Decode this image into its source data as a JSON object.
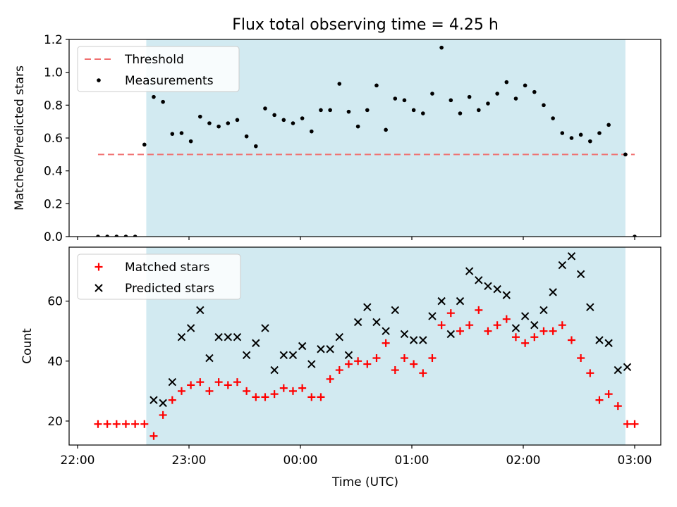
{
  "chart_data": [
    {
      "type": "scatter",
      "title": "Flux total observing time = 4.25 h",
      "xlabel": "",
      "ylabel": "Matched/Predicted stars",
      "xlim": [
        "21:55",
        "03:15"
      ],
      "ylim": [
        0,
        1.2
      ],
      "yticks": [
        "0.0",
        "0.2",
        "0.4",
        "0.6",
        "0.8",
        "1.0",
        "1.2"
      ],
      "shaded_span": [
        "22:37",
        "02:55"
      ],
      "shade_color": "#add8e6",
      "legend": {
        "position": "top-left",
        "entries": [
          "Threshold",
          "Measurements"
        ]
      },
      "threshold": {
        "name": "Threshold",
        "value": 0.5,
        "x_range": [
          "22:11",
          "03:00"
        ],
        "color": "#f07070",
        "style": "dashed"
      },
      "series": [
        {
          "name": "Measurements",
          "color": "#000000",
          "marker": "dot",
          "points": [
            [
              "22:11",
              0.0
            ],
            [
              "22:16",
              0.0
            ],
            [
              "22:21",
              0.0
            ],
            [
              "22:26",
              0.0
            ],
            [
              "22:31",
              0.0
            ],
            [
              "22:36",
              0.56
            ],
            [
              "22:41",
              0.85
            ],
            [
              "22:46",
              0.82
            ],
            [
              "22:51",
              0.625
            ],
            [
              "22:56",
              0.63
            ],
            [
              "23:01",
              0.58
            ],
            [
              "23:06",
              0.73
            ],
            [
              "23:11",
              0.69
            ],
            [
              "23:16",
              0.67
            ],
            [
              "23:21",
              0.69
            ],
            [
              "23:26",
              0.71
            ],
            [
              "23:31",
              0.61
            ],
            [
              "23:36",
              0.55
            ],
            [
              "23:41",
              0.78
            ],
            [
              "23:46",
              0.74
            ],
            [
              "23:51",
              0.71
            ],
            [
              "23:56",
              0.69
            ],
            [
              "00:01",
              0.72
            ],
            [
              "00:06",
              0.64
            ],
            [
              "00:11",
              0.77
            ],
            [
              "00:16",
              0.77
            ],
            [
              "00:21",
              0.93
            ],
            [
              "00:26",
              0.76
            ],
            [
              "00:31",
              0.67
            ],
            [
              "00:36",
              0.77
            ],
            [
              "00:41",
              0.92
            ],
            [
              "00:46",
              0.65
            ],
            [
              "00:51",
              0.84
            ],
            [
              "00:56",
              0.83
            ],
            [
              "01:01",
              0.77
            ],
            [
              "01:06",
              0.75
            ],
            [
              "01:11",
              0.87
            ],
            [
              "01:16",
              1.15
            ],
            [
              "01:21",
              0.83
            ],
            [
              "01:26",
              0.75
            ],
            [
              "01:31",
              0.85
            ],
            [
              "01:36",
              0.77
            ],
            [
              "01:41",
              0.81
            ],
            [
              "01:46",
              0.87
            ],
            [
              "01:51",
              0.94
            ],
            [
              "01:56",
              0.84
            ],
            [
              "02:01",
              0.92
            ],
            [
              "02:06",
              0.88
            ],
            [
              "02:11",
              0.8
            ],
            [
              "02:16",
              0.72
            ],
            [
              "02:21",
              0.63
            ],
            [
              "02:26",
              0.6
            ],
            [
              "02:31",
              0.62
            ],
            [
              "02:36",
              0.58
            ],
            [
              "02:41",
              0.63
            ],
            [
              "02:46",
              0.68
            ],
            [
              "02:55",
              0.5
            ],
            [
              "03:00",
              0.0
            ]
          ]
        }
      ]
    },
    {
      "type": "scatter",
      "title": "",
      "xlabel": "Time (UTC)",
      "ylabel": "Count",
      "xlim": [
        "21:55",
        "03:15"
      ],
      "ylim": [
        12,
        78
      ],
      "yticks": [
        "20",
        "40",
        "60"
      ],
      "xticks": [
        "22:00",
        "23:00",
        "00:00",
        "01:00",
        "02:00",
        "03:00"
      ],
      "shaded_span": [
        "22:37",
        "02:55"
      ],
      "shade_color": "#add8e6",
      "legend": {
        "position": "top-left",
        "entries": [
          "Matched stars",
          "Predicted stars"
        ]
      },
      "series": [
        {
          "name": "Matched stars",
          "color": "#ff0000",
          "marker": "plus",
          "points": [
            [
              "22:11",
              19
            ],
            [
              "22:16",
              19
            ],
            [
              "22:21",
              19
            ],
            [
              "22:26",
              19
            ],
            [
              "22:31",
              19
            ],
            [
              "22:36",
              19
            ],
            [
              "22:41",
              15
            ],
            [
              "22:46",
              22
            ],
            [
              "22:51",
              27
            ],
            [
              "22:56",
              30
            ],
            [
              "23:01",
              32
            ],
            [
              "23:06",
              33
            ],
            [
              "23:11",
              30
            ],
            [
              "23:16",
              33
            ],
            [
              "23:21",
              32
            ],
            [
              "23:26",
              33
            ],
            [
              "23:31",
              30
            ],
            [
              "23:36",
              28
            ],
            [
              "23:41",
              28
            ],
            [
              "23:46",
              29
            ],
            [
              "23:51",
              31
            ],
            [
              "23:56",
              30
            ],
            [
              "00:01",
              31
            ],
            [
              "00:06",
              28
            ],
            [
              "00:11",
              28
            ],
            [
              "00:16",
              34
            ],
            [
              "00:21",
              37
            ],
            [
              "00:26",
              39
            ],
            [
              "00:31",
              40
            ],
            [
              "00:36",
              39
            ],
            [
              "00:41",
              41
            ],
            [
              "00:46",
              46
            ],
            [
              "00:51",
              37
            ],
            [
              "00:56",
              41
            ],
            [
              "01:01",
              39
            ],
            [
              "01:06",
              36
            ],
            [
              "01:11",
              41
            ],
            [
              "01:16",
              52
            ],
            [
              "01:21",
              56
            ],
            [
              "01:26",
              50
            ],
            [
              "01:31",
              52
            ],
            [
              "01:36",
              57
            ],
            [
              "01:41",
              50
            ],
            [
              "01:46",
              52
            ],
            [
              "01:51",
              54
            ],
            [
              "01:56",
              48
            ],
            [
              "02:01",
              46
            ],
            [
              "02:06",
              48
            ],
            [
              "02:11",
              50
            ],
            [
              "02:16",
              50
            ],
            [
              "02:21",
              52
            ],
            [
              "02:26",
              47
            ],
            [
              "02:31",
              41
            ],
            [
              "02:36",
              36
            ],
            [
              "02:41",
              27
            ],
            [
              "02:46",
              29
            ],
            [
              "02:51",
              25
            ],
            [
              "02:56",
              19
            ],
            [
              "03:00",
              19
            ]
          ]
        },
        {
          "name": "Predicted stars",
          "color": "#000000",
          "marker": "x",
          "points": [
            [
              "22:41",
              27
            ],
            [
              "22:46",
              26
            ],
            [
              "22:51",
              33
            ],
            [
              "22:56",
              48
            ],
            [
              "23:01",
              51
            ],
            [
              "23:06",
              57
            ],
            [
              "23:11",
              41
            ],
            [
              "23:16",
              48
            ],
            [
              "23:21",
              48
            ],
            [
              "23:26",
              48
            ],
            [
              "23:31",
              42
            ],
            [
              "23:36",
              46
            ],
            [
              "23:41",
              51
            ],
            [
              "23:46",
              37
            ],
            [
              "23:51",
              42
            ],
            [
              "23:56",
              42
            ],
            [
              "00:01",
              45
            ],
            [
              "00:06",
              39
            ],
            [
              "00:11",
              44
            ],
            [
              "00:16",
              44
            ],
            [
              "00:21",
              48
            ],
            [
              "00:26",
              42
            ],
            [
              "00:31",
              53
            ],
            [
              "00:36",
              58
            ],
            [
              "00:41",
              53
            ],
            [
              "00:46",
              50
            ],
            [
              "00:51",
              57
            ],
            [
              "00:56",
              49
            ],
            [
              "01:01",
              47
            ],
            [
              "01:06",
              47
            ],
            [
              "01:11",
              55
            ],
            [
              "01:16",
              60
            ],
            [
              "01:21",
              49
            ],
            [
              "01:26",
              60
            ],
            [
              "01:31",
              70
            ],
            [
              "01:36",
              67
            ],
            [
              "01:41",
              65
            ],
            [
              "01:46",
              64
            ],
            [
              "01:51",
              62
            ],
            [
              "01:56",
              51
            ],
            [
              "02:01",
              55
            ],
            [
              "02:06",
              52
            ],
            [
              "02:11",
              57
            ],
            [
              "02:16",
              63
            ],
            [
              "02:21",
              72
            ],
            [
              "02:26",
              75
            ],
            [
              "02:31",
              69
            ],
            [
              "02:36",
              58
            ],
            [
              "02:41",
              47
            ],
            [
              "02:46",
              46
            ],
            [
              "02:51",
              37
            ],
            [
              "02:56",
              38
            ]
          ]
        }
      ]
    }
  ]
}
